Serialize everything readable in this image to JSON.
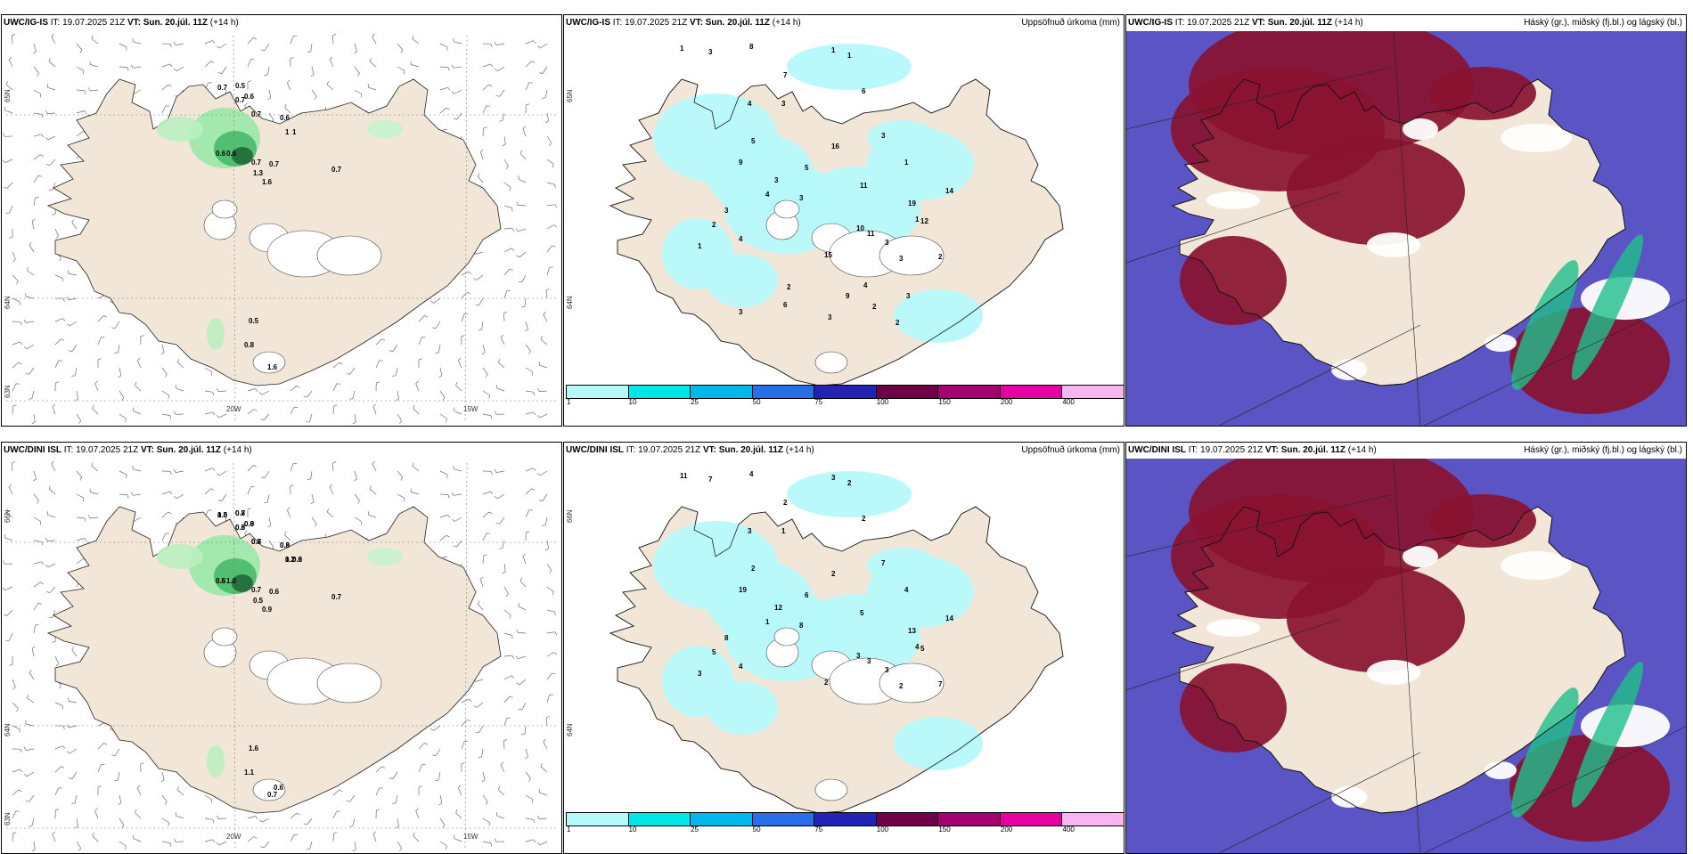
{
  "colors": {
    "land": "#f2e6d8",
    "wind": "#6e6e6e",
    "precip_light": "#b6f9fb",
    "cloud_high": "#8a1230",
    "cloud_mid": "#5a54c4",
    "cloud_low": "#ffffff",
    "green": "#1fbf8b"
  },
  "panels": [
    {
      "key": "p11",
      "model": "UWC/IG-IS",
      "it_label": "IT:",
      "it": "19.07.2025 21Z",
      "vt_label": "VT:",
      "vt": "Sun. 20.júl. 11Z",
      "lead": "(+14 h)",
      "right_label": "",
      "lat_labels": [
        "65N",
        "64N",
        "63N"
      ],
      "lon_labels": [
        "20W",
        "15W"
      ],
      "values": [
        "0.7",
        "0.5",
        "0.6",
        "0.7",
        "0.7",
        "0.6",
        "1",
        "1",
        "0.6",
        "0.6",
        "0.7",
        "0.7",
        "1.3",
        "1.6",
        "0.7",
        "0.5",
        "0.8",
        "1.6"
      ]
    },
    {
      "key": "p12",
      "model": "UWC/IG-IS",
      "it_label": "IT:",
      "it": "19.07.2025 21Z",
      "vt_label": "VT:",
      "vt": "Sun. 20.júl. 11Z",
      "lead": "(+14 h)",
      "right_label": "Uppsöfnuð úrkoma (mm)",
      "lat_labels": [
        "65N",
        "64N"
      ],
      "lon_labels": [],
      "values": [
        "1",
        "3",
        "8",
        "7",
        "1",
        "1",
        "6",
        "4",
        "3",
        "5",
        "9",
        "3",
        "5",
        "3",
        "4",
        "16",
        "11",
        "3",
        "1",
        "19",
        "12",
        "14",
        "1",
        "2",
        "1",
        "2",
        "3",
        "4",
        "15",
        "10",
        "11",
        "3",
        "3",
        "3",
        "9",
        "4",
        "3",
        "2",
        "6",
        "2",
        "3",
        "2"
      ]
    },
    {
      "key": "p13",
      "model": "UWC/IG-IS",
      "it_label": "IT:",
      "it": "19.07.2025 21Z",
      "vt_label": "VT:",
      "vt": "Sun. 20.júl. 11Z",
      "lead": "(+14 h)",
      "right_label": "Háský (gr.), miðský (fj.bl.) og lágský (bl.)",
      "lat_labels": [],
      "lon_labels": [],
      "values": []
    },
    {
      "key": "p21",
      "model": "UWC/DINI ISL",
      "it_label": "IT:",
      "it": "19.07.2025 21Z",
      "vt_label": "VT:",
      "vt": "Sun. 20.júl. 11Z",
      "lead": "(+14 h)",
      "right_label": "",
      "lat_labels": [
        "66N",
        "64N",
        "63N"
      ],
      "lon_labels": [
        "20W",
        "15W"
      ],
      "values": [
        "0.5",
        "0.7",
        "0.9",
        "0.8",
        "0.8",
        "0.9",
        "1.2",
        "0.8",
        "0.5",
        "1.0",
        "0.7",
        "0.6",
        "0.5",
        "0.9",
        "0.7",
        "1.6",
        "1.1",
        "0.7",
        "0.6",
        "1.0",
        "0.8",
        "0.8",
        "0.6",
        "0.7",
        "0.8",
        "0.7",
        "0.6",
        "0.6"
      ]
    },
    {
      "key": "p22",
      "model": "UWC/DINI ISL",
      "it_label": "IT:",
      "it": "19.07.2025 21Z",
      "vt_label": "VT:",
      "vt": "Sun. 20.júl. 11Z",
      "lead": "(+14 h)",
      "right_label": "Uppsöfnuð úrkoma (mm)",
      "lat_labels": [
        "66N",
        "64N"
      ],
      "lon_labels": [],
      "values": [
        "11",
        "7",
        "4",
        "2",
        "3",
        "2",
        "2",
        "3",
        "1",
        "2",
        "19",
        "12",
        "6",
        "8",
        "1",
        "2",
        "5",
        "7",
        "4",
        "13",
        "5",
        "14",
        "4",
        "7",
        "3",
        "5",
        "8",
        "4",
        "2",
        "3",
        "3",
        "3",
        "2"
      ]
    },
    {
      "key": "p23",
      "model": "UWC/DINI ISL",
      "it_label": "IT:",
      "it": "19.07.2025 21Z",
      "vt_label": "VT:",
      "vt": "Sun. 20.júl. 11Z",
      "lead": "(+14 h)",
      "right_label": "Háský (gr.), miðský (fj.bl.) og lágský (bl.)",
      "lat_labels": [],
      "lon_labels": [],
      "values": []
    }
  ],
  "colorbar": {
    "colors": [
      "#b6f9fb",
      "#00e5e8",
      "#00b8ea",
      "#2a6de8",
      "#2222b4",
      "#6d0046",
      "#a5006f",
      "#e600a3",
      "#f7b6f0"
    ],
    "ticks": [
      "1",
      "10",
      "25",
      "50",
      "75",
      "100",
      "150",
      "200",
      "400"
    ]
  }
}
